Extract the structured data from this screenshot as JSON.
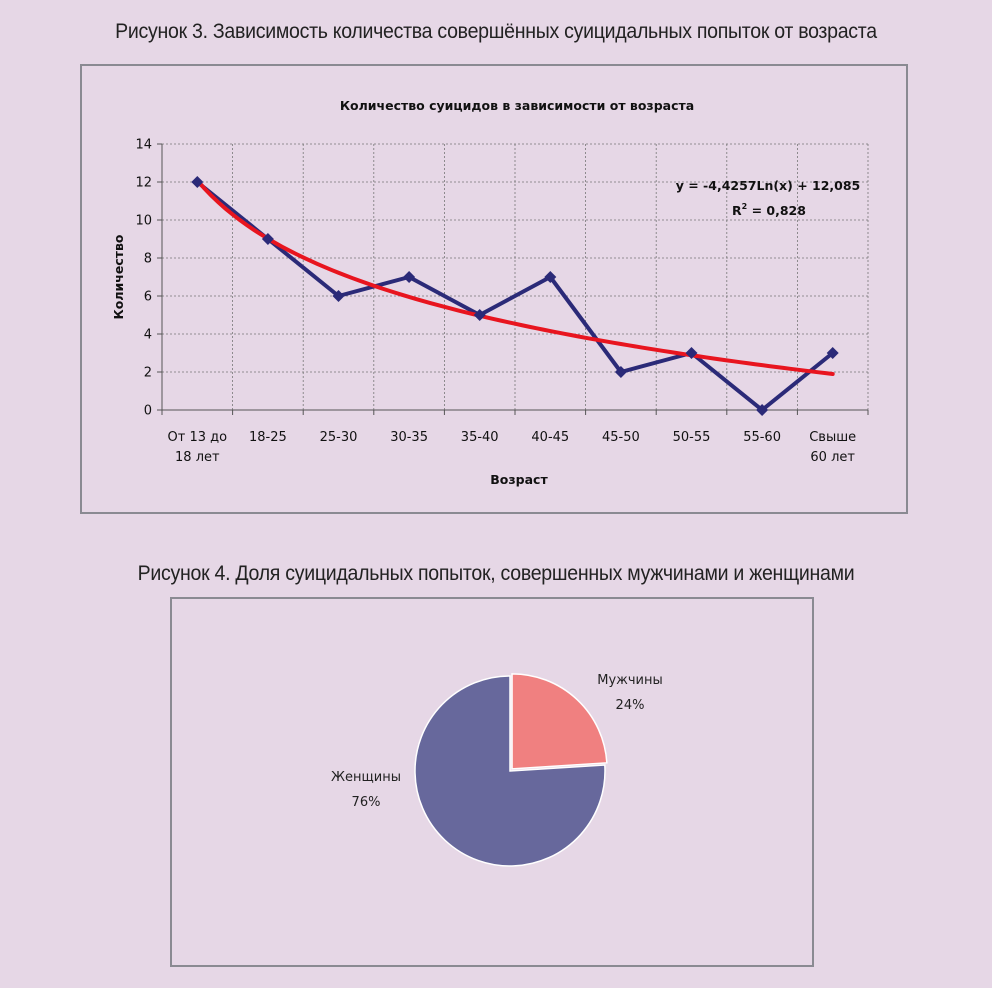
{
  "figure3": {
    "caption": "Рисунок 3. Зависимость количества совершённых суицидальных попыток от возраста",
    "chart_data": {
      "type": "line",
      "title": "Количество суицидов в зависимости от возраста",
      "xlabel": "Возраст",
      "ylabel": "Количество",
      "categories": [
        [
          "От 13 до",
          "18 лет"
        ],
        [
          "18-25"
        ],
        [
          "25-30"
        ],
        [
          "30-35"
        ],
        [
          "35-40"
        ],
        [
          "40-45"
        ],
        [
          "45-50"
        ],
        [
          "50-55"
        ],
        [
          "55-60"
        ],
        [
          "Свыше",
          "60 лет"
        ]
      ],
      "ylim": [
        0,
        14
      ],
      "yticks": [
        0,
        2,
        4,
        6,
        8,
        10,
        12,
        14
      ],
      "grid": true,
      "series": [
        {
          "values": [
            12,
            9,
            6,
            7,
            5,
            7,
            2,
            3,
            0,
            3
          ],
          "color": "#2b2a78",
          "marker": "diamond"
        }
      ],
      "trendline": {
        "type": "logarithmic",
        "a": -4.4257,
        "b": 12.085,
        "color": "#e8151f",
        "equation": "y = -4,4257Ln(x) + 12,085",
        "r2_label": "R",
        "r2_sup": "2",
        "r2_value": " = 0,828"
      }
    }
  },
  "figure4": {
    "caption": "Рисунок 4. Доля суицидальных попыток, совершенных мужчинами и женщинами",
    "chart_data": {
      "type": "pie",
      "slices": [
        {
          "label": "Мужчины",
          "value": 24,
          "value_label": "24%",
          "color": "#f08080"
        },
        {
          "label": "Женщины",
          "value": 76,
          "value_label": "76%",
          "color": "#67689c"
        }
      ]
    }
  }
}
